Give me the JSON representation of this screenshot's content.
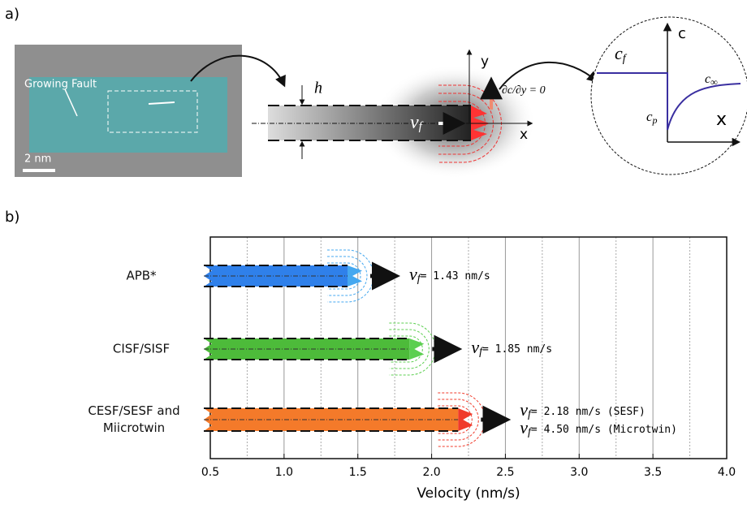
{
  "panel_a": {
    "label": "a)",
    "fault_label": "Growing Fault",
    "scale_bar": "2 nm",
    "thickness": "h",
    "velocity": {
      "base": "v",
      "sub": "f"
    },
    "axis_y": "y",
    "axis_x": "x",
    "boundary_condition": "∂c/∂y = 0",
    "inset": {
      "c_f": {
        "base": "c",
        "sub": "f"
      },
      "axis_c": "c",
      "c_inf": {
        "base": "c",
        "sub": "∞"
      },
      "c_p": {
        "base": "c",
        "sub": "p"
      },
      "axis_x": "x"
    }
  },
  "chart_data": {
    "type": "hbar",
    "panel_label": "b)",
    "categories": [
      "APB*",
      "CISF/SISF",
      "CESF/SESF and Miicrotwin"
    ],
    "values": [
      1.43,
      1.85,
      2.18
    ],
    "value_labels": [
      "= 1.43 nm/s",
      "= 1.85 nm/s",
      "= 2.18 nm/s (SESF)"
    ],
    "label_symbol": {
      "base": "v",
      "sub": "f"
    },
    "annotations": [
      "= 4.50 nm/s (Microtwin)"
    ],
    "colors": [
      "#2f80ea",
      "#4dbb3a",
      "#f47a2a"
    ],
    "halo_colors": [
      "#45a8f0",
      "#5ccf50",
      "#f03a2a"
    ],
    "xlabel": "Velocity (nm/s)",
    "xlim": [
      0.5,
      4.0
    ],
    "xticks": [
      0.5,
      {
        "value": 1,
        "label": "1.0"
      },
      1.5,
      {
        "value": 2,
        "label": "2.0"
      },
      2.5,
      {
        "value": 3,
        "label": "3.0"
      },
      3.5,
      {
        "value": 4,
        "label": "4.0"
      }
    ],
    "minor_xticks": [
      0.75,
      1.25,
      1.75,
      2.25,
      2.75,
      3.25,
      3.75
    ],
    "grid": true
  }
}
